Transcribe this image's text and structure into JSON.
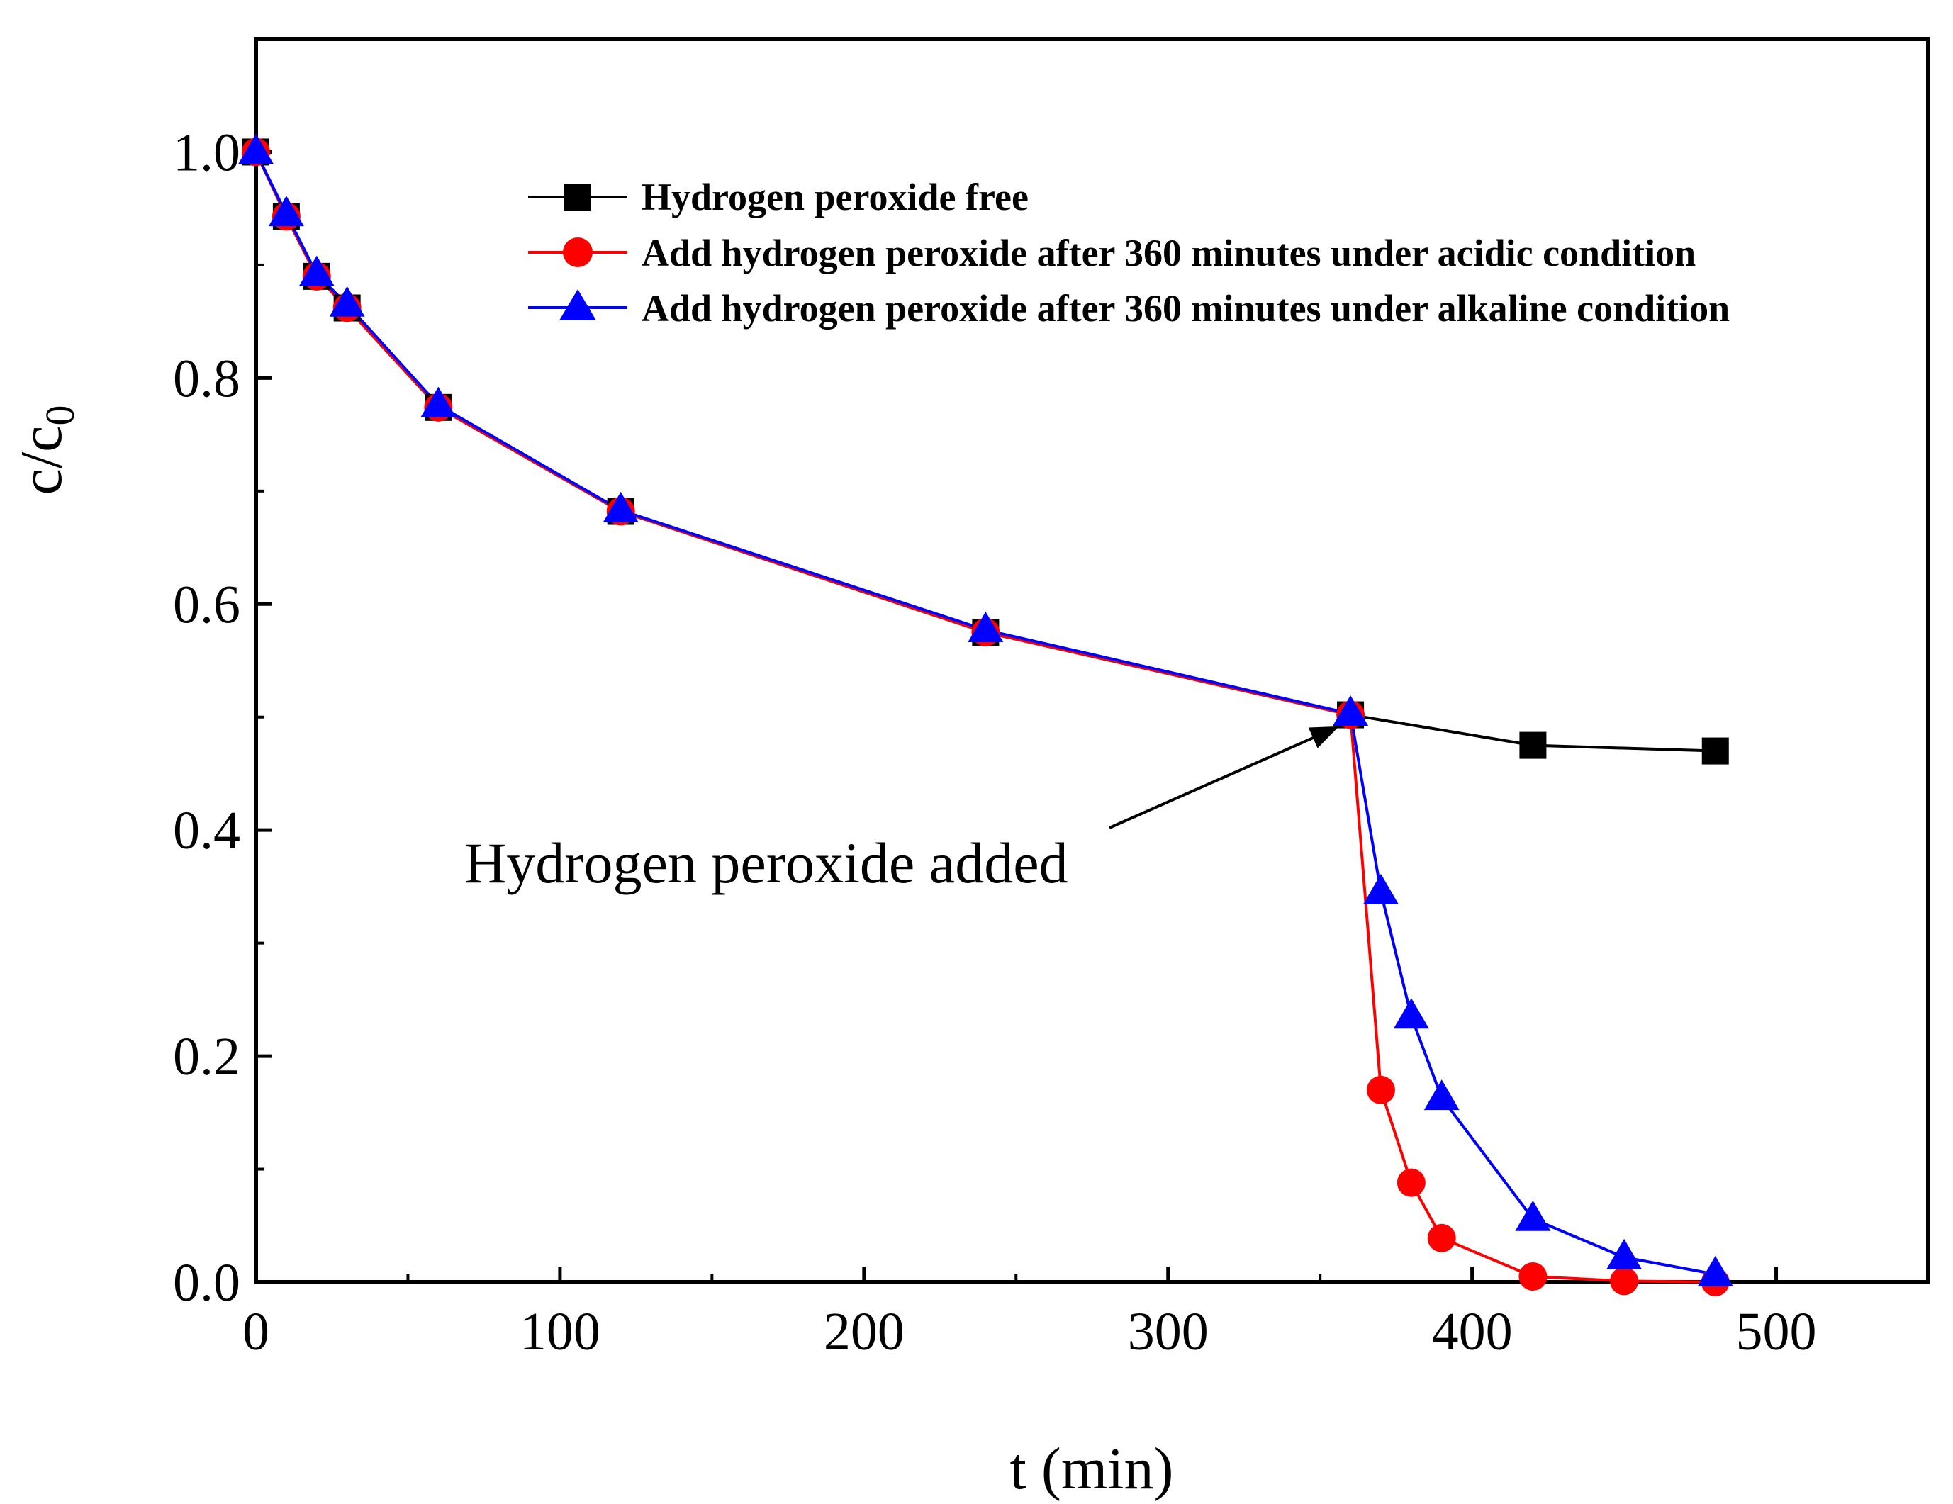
{
  "chart_data": {
    "type": "line",
    "title": "",
    "xlabel": "t (min)",
    "ylabel_main": "c/c",
    "ylabel_sub": "0",
    "xlim": [
      0,
      550
    ],
    "ylim": [
      0,
      1.1
    ],
    "xticks": [
      0,
      100,
      200,
      300,
      400,
      500
    ],
    "xtick_labels": [
      "0",
      "100",
      "200",
      "300",
      "400",
      "500"
    ],
    "yticks": [
      0,
      0.2,
      0.4,
      0.6,
      0.8,
      1.0
    ],
    "ytick_labels": [
      "0.0",
      "0.2",
      "0.4",
      "0.6",
      "0.8",
      "1.0"
    ],
    "grid": false,
    "legend_position": "top-right",
    "series": [
      {
        "name": "Hydrogen peroxide free",
        "color": "#000000",
        "marker": "square",
        "x": [
          0,
          10,
          20,
          30,
          60,
          120,
          240,
          360,
          420,
          480
        ],
        "y": [
          1.0,
          0.943,
          0.89,
          0.862,
          0.774,
          0.682,
          0.575,
          0.502,
          0.475,
          0.47
        ]
      },
      {
        "name": "Add hydrogen peroxide after 360 minutes under acidic condition",
        "color": "#ff0000",
        "marker": "circle",
        "x": [
          0,
          10,
          20,
          30,
          60,
          120,
          240,
          360,
          370,
          380,
          390,
          420,
          450,
          480
        ],
        "y": [
          1.0,
          0.943,
          0.89,
          0.862,
          0.774,
          0.682,
          0.575,
          0.502,
          0.17,
          0.088,
          0.039,
          0.005,
          0.001,
          0.0
        ]
      },
      {
        "name": "Add hydrogen peroxide after 360 minutes under alkaline condition",
        "color": "#0000ff",
        "marker": "triangle",
        "x": [
          0,
          10,
          20,
          30,
          60,
          120,
          240,
          360,
          370,
          380,
          390,
          420,
          450,
          480
        ],
        "y": [
          1.0,
          0.945,
          0.892,
          0.865,
          0.776,
          0.683,
          0.577,
          0.503,
          0.345,
          0.235,
          0.163,
          0.056,
          0.022,
          0.007
        ]
      }
    ],
    "annotation": {
      "text": "Hydrogen peroxide added",
      "arrow_target_x": 360,
      "arrow_target_y": 0.502
    }
  }
}
